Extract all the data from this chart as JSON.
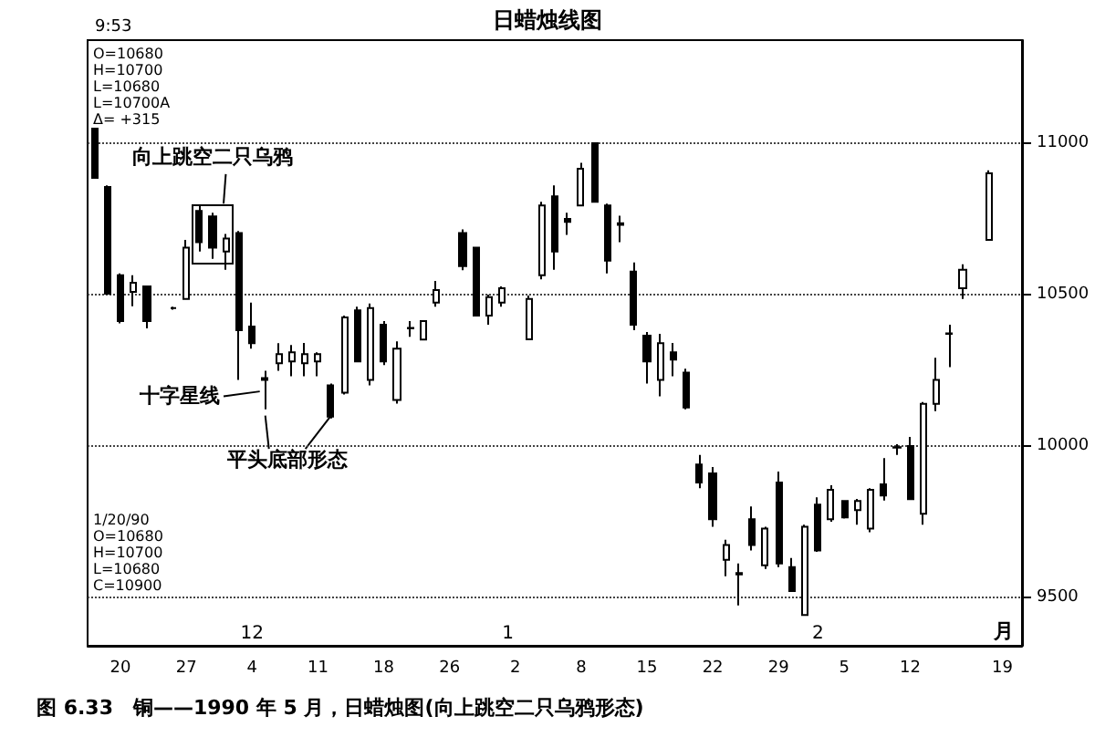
{
  "chart_data": {
    "type": "candlestick",
    "title": "日蜡烛线图",
    "categories": [
      null,
      null,
      "20",
      null,
      null,
      null,
      null,
      "27",
      null,
      null,
      null,
      null,
      "4",
      null,
      null,
      null,
      null,
      "11",
      null,
      null,
      null,
      null,
      "18",
      null,
      null,
      null,
      null,
      "26",
      null,
      null,
      null,
      null,
      "2",
      null,
      null,
      null,
      null,
      "8",
      null,
      null,
      null,
      null,
      "15",
      null,
      null,
      null,
      null,
      "22",
      null,
      null,
      null,
      null,
      "29",
      null,
      null,
      null,
      null,
      "5",
      null,
      null,
      null,
      null,
      "12",
      null,
      null,
      null,
      null,
      null,
      null,
      "19",
      null
    ],
    "ohlc": [
      [
        11048,
        11050,
        10885,
        10885
      ],
      [
        10855,
        10860,
        10503,
        10503
      ],
      [
        10564,
        10570,
        10405,
        10412
      ],
      [
        10509,
        10564,
        10461,
        10539
      ],
      [
        10527,
        10527,
        10388,
        10412
      ],
      null,
      [
        10455,
        10460,
        10450,
        10455
      ],
      [
        10485,
        10680,
        10485,
        10655
      ],
      [
        10776,
        10794,
        10642,
        10673
      ],
      [
        10758,
        10770,
        10618,
        10655
      ],
      [
        10642,
        10700,
        10582,
        10685
      ],
      [
        10703,
        10710,
        10218,
        10382
      ],
      [
        10394,
        10473,
        10321,
        10339
      ],
      [
        10218,
        10248,
        10121,
        10224
      ],
      [
        10273,
        10339,
        10248,
        10303
      ],
      [
        10279,
        10333,
        10230,
        10309
      ],
      [
        10273,
        10340,
        10230,
        10303
      ],
      [
        10279,
        10309,
        10230,
        10303
      ],
      [
        10200,
        10206,
        10091,
        10097
      ],
      [
        10176,
        10430,
        10170,
        10424
      ],
      [
        10448,
        10460,
        10279,
        10279
      ],
      [
        10218,
        10470,
        10200,
        10455
      ],
      [
        10400,
        10412,
        10267,
        10279
      ],
      [
        10152,
        10345,
        10140,
        10321
      ],
      [
        10388,
        10412,
        10360,
        10390
      ],
      [
        10351,
        10412,
        10351,
        10412
      ],
      [
        10473,
        10545,
        10460,
        10515
      ],
      null,
      [
        10703,
        10715,
        10580,
        10594
      ],
      [
        10655,
        10655,
        10430,
        10430
      ],
      [
        10430,
        10500,
        10400,
        10491
      ],
      [
        10473,
        10527,
        10460,
        10521
      ],
      null,
      [
        10352,
        10497,
        10352,
        10485
      ],
      [
        10564,
        10806,
        10550,
        10794
      ],
      [
        10824,
        10860,
        10582,
        10642
      ],
      [
        10750,
        10770,
        10697,
        10740
      ],
      [
        10794,
        10935,
        10794,
        10915
      ],
      [
        11000,
        11000,
        10806,
        10806
      ],
      [
        10794,
        10800,
        10570,
        10612
      ],
      [
        10735,
        10760,
        10673,
        10730
      ],
      [
        10576,
        10606,
        10382,
        10400
      ],
      [
        10364,
        10376,
        10206,
        10279
      ],
      [
        10218,
        10370,
        10164,
        10339
      ],
      [
        10309,
        10340,
        10230,
        10285
      ],
      [
        10242,
        10255,
        10121,
        10127
      ],
      [
        9939,
        9970,
        9860,
        9879
      ],
      [
        9909,
        9930,
        9733,
        9758
      ],
      [
        9624,
        9690,
        9570,
        9673
      ],
      [
        9580,
        9612,
        9473,
        9576
      ],
      [
        9758,
        9800,
        9655,
        9673
      ],
      [
        9606,
        9733,
        9594,
        9727
      ],
      [
        9879,
        9915,
        9600,
        9612
      ],
      [
        9600,
        9630,
        9521,
        9521
      ],
      [
        9442,
        9740,
        9442,
        9733
      ],
      [
        9806,
        9830,
        9650,
        9655
      ],
      [
        9758,
        9870,
        9750,
        9855
      ],
      [
        9818,
        9820,
        9760,
        9764
      ],
      [
        9788,
        9825,
        9740,
        9818
      ],
      [
        9727,
        9860,
        9715,
        9855
      ],
      [
        9873,
        9960,
        9820,
        9836
      ],
      [
        9994,
        10006,
        9970,
        9996
      ],
      [
        10000,
        10030,
        9824,
        9824
      ],
      [
        9776,
        10145,
        9740,
        10139
      ],
      [
        10139,
        10291,
        10115,
        10218
      ],
      [
        10372,
        10400,
        10260,
        10370
      ],
      [
        10521,
        10600,
        10485,
        10582
      ],
      null,
      [
        10680,
        10910,
        10680,
        10900
      ],
      null,
      null
    ],
    "ylim": [
      9340,
      11340
    ],
    "yticks": [
      9500,
      10000,
      10500,
      11000
    ],
    "grid": "y",
    "annotations": [
      "9:53",
      "O=10680\nH=10700\nL=10680\nL=10700A\nΔ= +315",
      "1/20/90\nO=10680\nH=10700\nL=10680\nC=10900",
      {
        "text": "向上跳空二只乌鸦",
        "y": 10800
      },
      "十字星线",
      "平头底部形态",
      "12",
      "1",
      "2",
      "月",
      "图 6.33　铜——1990 年 5 月，日蜡烛图(向上跳空二只乌鸦形态)"
    ]
  }
}
